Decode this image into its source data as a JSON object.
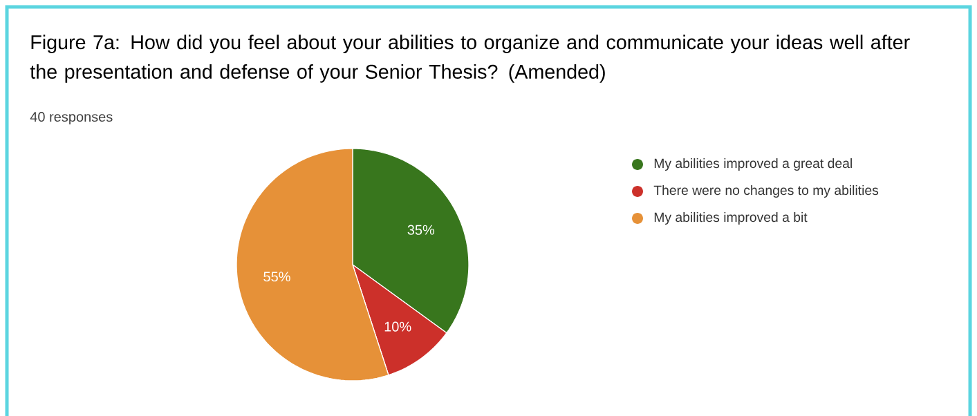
{
  "chart_data": {
    "type": "pie",
    "title": "Figure 7a: How did you feel about your abilities to organize and communicate your ideas well after the presentation and defense of your Senior Thesis? (Amended)",
    "subtitle": "40 responses",
    "categories": [
      "My abilities improved a great deal",
      "There were no changes to my abilities",
      "My abilities improved a bit"
    ],
    "values": [
      35,
      10,
      55
    ],
    "value_labels": [
      "35%",
      "10%",
      "55%"
    ],
    "colors": [
      "#38761d",
      "#cc302a",
      "#e69138"
    ],
    "legend": "right"
  }
}
